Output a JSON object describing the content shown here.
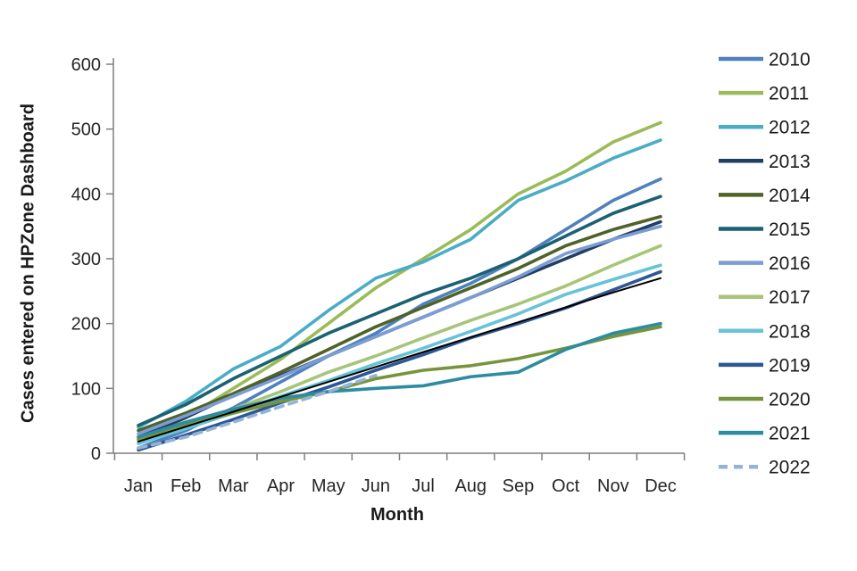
{
  "axes": {
    "y_title": "Cases entered on HPZone Dashboard",
    "x_title": "Month"
  },
  "chart_data": {
    "type": "line",
    "title": "",
    "xlabel": "Month",
    "ylabel": "Cases entered on HPZone Dashboard",
    "categories": [
      "Jan",
      "Feb",
      "Mar",
      "Apr",
      "May",
      "Jun",
      "Jul",
      "Aug",
      "Sep",
      "Oct",
      "Nov",
      "Dec"
    ],
    "ylim": [
      0,
      600
    ],
    "yticks": [
      0,
      100,
      200,
      300,
      400,
      500,
      600
    ],
    "grid": false,
    "legend_position": "right",
    "axis_color": "#7F7F7F",
    "text_color": "#262626",
    "series": [
      {
        "name": "2010",
        "color": "#4E81BD",
        "dash": false,
        "width": 3.6,
        "in_legend": true,
        "values": [
          8,
          35,
          70,
          110,
          150,
          185,
          230,
          262,
          300,
          345,
          390,
          423
        ]
      },
      {
        "name": "2011",
        "color": "#9BBB59",
        "dash": false,
        "width": 3.6,
        "in_legend": true,
        "values": [
          20,
          55,
          100,
          145,
          200,
          255,
          300,
          345,
          400,
          435,
          480,
          510
        ]
      },
      {
        "name": "2012",
        "color": "#4BACC6",
        "dash": false,
        "width": 3.6,
        "in_legend": true,
        "values": [
          40,
          80,
          130,
          165,
          220,
          270,
          295,
          330,
          390,
          420,
          455,
          483
        ]
      },
      {
        "name": "2013",
        "color": "#203F62",
        "dash": false,
        "width": 3.6,
        "in_legend": true,
        "values": [
          25,
          55,
          90,
          120,
          150,
          180,
          210,
          240,
          270,
          300,
          330,
          357
        ]
      },
      {
        "name": "2014",
        "color": "#4F6228",
        "dash": false,
        "width": 3.6,
        "in_legend": true,
        "values": [
          35,
          62,
          92,
          125,
          160,
          195,
          225,
          255,
          285,
          320,
          345,
          365
        ]
      },
      {
        "name": "2015",
        "color": "#1C6172",
        "dash": false,
        "width": 3.6,
        "in_legend": true,
        "values": [
          43,
          75,
          115,
          150,
          185,
          215,
          245,
          270,
          300,
          335,
          370,
          396
        ]
      },
      {
        "name": "2016",
        "color": "#7C9CD4",
        "dash": false,
        "width": 3.6,
        "in_legend": true,
        "values": [
          30,
          58,
          88,
          118,
          150,
          180,
          210,
          240,
          272,
          308,
          330,
          350
        ]
      },
      {
        "name": "2017",
        "color": "#A7C579",
        "dash": false,
        "width": 3.6,
        "in_legend": true,
        "values": [
          18,
          40,
          68,
          95,
          125,
          150,
          178,
          205,
          230,
          258,
          290,
          320
        ]
      },
      {
        "name": "2018",
        "color": "#68C2D8",
        "dash": false,
        "width": 3.6,
        "in_legend": true,
        "values": [
          15,
          38,
          62,
          88,
          112,
          138,
          162,
          188,
          215,
          245,
          268,
          290
        ]
      },
      {
        "name": "2019",
        "color": "#2E5893",
        "dash": false,
        "width": 3.6,
        "in_legend": true,
        "values": [
          5,
          28,
          52,
          78,
          102,
          128,
          152,
          178,
          200,
          224,
          252,
          280
        ]
      },
      {
        "name": "2020",
        "color": "#77943D",
        "dash": false,
        "width": 3.6,
        "in_legend": true,
        "values": [
          22,
          45,
          62,
          80,
          95,
          115,
          128,
          135,
          146,
          162,
          180,
          195
        ]
      },
      {
        "name": "2021",
        "color": "#2D8BA2",
        "dash": false,
        "width": 3.6,
        "in_legend": true,
        "values": [
          25,
          48,
          68,
          85,
          95,
          100,
          104,
          118,
          125,
          160,
          185,
          200
        ]
      },
      {
        "name": "2022",
        "color": "#95B3D7",
        "dash": true,
        "width": 3.6,
        "in_legend": true,
        "values": [
          8,
          25,
          48,
          72,
          95,
          120
        ]
      },
      {
        "name": "trend-line",
        "color": "#000000",
        "dash": false,
        "width": 2,
        "in_legend": false,
        "values": [
          18,
          41,
          64,
          87,
          110,
          133,
          156,
          179,
          202,
          225,
          248,
          270
        ]
      }
    ]
  }
}
